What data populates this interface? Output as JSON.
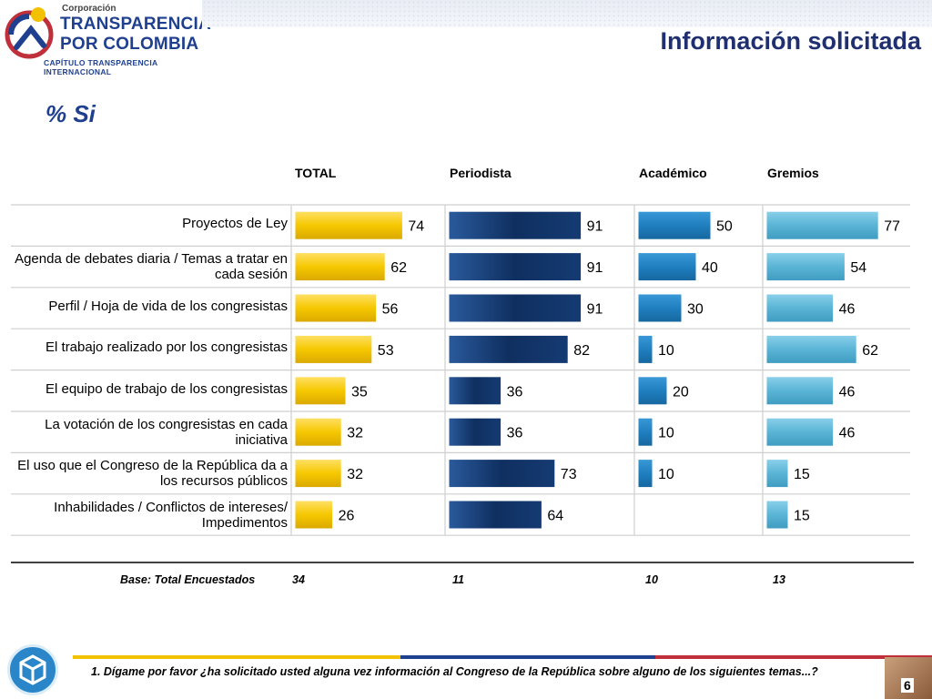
{
  "header": {
    "logo_small": "Corporación",
    "logo_line1": "TRANSPARENCIA",
    "logo_line2": "POR COLOMBIA",
    "logo_sub": "CAPÍTULO TRANSPARENCIA INTERNACIONAL",
    "page_title": "Información solicitada",
    "subtitle": "% Si"
  },
  "colors": {
    "total": "#f6c800",
    "periodista": "#153b73",
    "academico": "#1f7fbf",
    "gremios": "#5ab4d6",
    "brand_blue": "#1f3f8f"
  },
  "chart_data": {
    "type": "bar",
    "orientation": "horizontal",
    "title": "% Si",
    "categories": [
      "Proyectos de Ley",
      "Agenda de debates diaria / Temas a tratar en cada sesión",
      "Perfil / Hoja de vida de los congresistas",
      "El trabajo realizado por los congresistas",
      "El equipo de trabajo de los congresistas",
      "La votación de los congresistas en cada iniciativa",
      "El uso que el Congreso de la República da a los recursos públicos",
      "Inhabilidades / Conflictos de intereses/ Impedimentos"
    ],
    "series": [
      {
        "name": "TOTAL",
        "values": [
          74,
          62,
          56,
          53,
          35,
          32,
          32,
          26
        ]
      },
      {
        "name": "Periodista",
        "values": [
          91,
          91,
          91,
          82,
          36,
          36,
          73,
          64
        ]
      },
      {
        "name": "Académico",
        "values": [
          50,
          40,
          30,
          10,
          20,
          10,
          10,
          null
        ]
      },
      {
        "name": "Gremios",
        "values": [
          77,
          54,
          46,
          62,
          46,
          46,
          15,
          15
        ]
      }
    ],
    "xlim": [
      0,
      100
    ]
  },
  "base": {
    "label": "Base: Total Encuestados",
    "values": [
      "34",
      "11",
      "10",
      "13"
    ]
  },
  "footer": {
    "question": "1. Dígame por favor ¿ha solicitado usted alguna vez información al Congreso de la República sobre alguno de los siguientes temas...?",
    "page_number": "6"
  }
}
